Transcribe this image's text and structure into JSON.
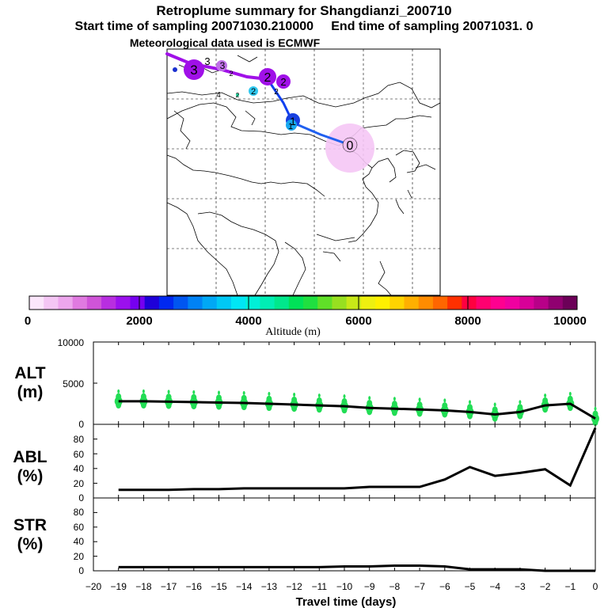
{
  "header": {
    "title": "Retroplume summary for Shangdianzi_200710",
    "subtitle_start": "Start time of sampling 20071030.210000",
    "subtitle_end": "End time of sampling 20071031.     0",
    "met_line": "Meteorological data used is ECMWF"
  },
  "colorbar": {
    "tick_labels": [
      "0",
      "2000",
      "4000",
      "6000",
      "8000",
      "10000"
    ],
    "label": "Altitude (m)",
    "colors": [
      "#fbe6fb",
      "#f4c6f4",
      "#eda6ed",
      "#e07ae0",
      "#d054d8",
      "#b82ee0",
      "#9b10ee",
      "#7600f0",
      "#1e00d8",
      "#0028f0",
      "#0056f0",
      "#0082f5",
      "#00a8f5",
      "#00c8f5",
      "#00e6f5",
      "#00f0d8",
      "#00eeb4",
      "#00e88c",
      "#00e258",
      "#20e040",
      "#60e028",
      "#98e020",
      "#c8e818",
      "#eef010",
      "#fff000",
      "#ffd400",
      "#ffb000",
      "#ff8c00",
      "#ff6600",
      "#ff3000",
      "#ff0040",
      "#ff0070",
      "#ff0090",
      "#f000a0",
      "#d80098",
      "#b80088",
      "#900070",
      "#6c0058"
    ]
  },
  "map": {
    "trajectory_labels": [
      "0",
      "1",
      "1",
      "2",
      "2",
      "2",
      "2",
      "3",
      "3",
      "3",
      "2",
      "2",
      "4"
    ]
  },
  "panels": {
    "alt": {
      "label_top": "ALT",
      "label_bottom": "(m)",
      "ticks": [
        "10000",
        "5000",
        "0"
      ]
    },
    "abl": {
      "label_top": "ABL",
      "label_bottom": "(%)",
      "ticks": [
        "80",
        "60",
        "40",
        "20",
        "0"
      ]
    },
    "str": {
      "label_top": "STR",
      "label_bottom": "(%)",
      "ticks": [
        "80",
        "60",
        "40",
        "20",
        "0"
      ]
    }
  },
  "xaxis": {
    "tick_labels": [
      "−20",
      "−19",
      "−18",
      "−17",
      "−16",
      "−15",
      "−14",
      "−13",
      "−12",
      "−11",
      "−10",
      "−9",
      "−8",
      "−7",
      "−6",
      "−5",
      "−4",
      "−3",
      "−2",
      "−1",
      "0"
    ],
    "label": "Travel time (days)"
  },
  "chart_data": [
    {
      "type": "line",
      "title": "ALT (m)",
      "x": [
        -19,
        -18,
        -17,
        -16,
        -15,
        -14,
        -13,
        -12,
        -11,
        -10,
        -9,
        -8,
        -7,
        -6,
        -5,
        -4,
        -3,
        -2,
        -1,
        0
      ],
      "values": [
        2800,
        2800,
        2750,
        2700,
        2650,
        2600,
        2500,
        2400,
        2300,
        2200,
        2000,
        1900,
        1800,
        1700,
        1500,
        1200,
        1500,
        2300,
        2500,
        700
      ],
      "xlim": [
        -20,
        0
      ],
      "ylim": [
        0,
        10000
      ],
      "ylabel": "ALT (m)",
      "xlabel": "Travel time (days)",
      "scatter_color": "#22dd55"
    },
    {
      "type": "line",
      "title": "ABL (%)",
      "x": [
        -19,
        -18,
        -17,
        -16,
        -15,
        -14,
        -13,
        -12,
        -11,
        -10,
        -9,
        -8,
        -7,
        -6,
        -5,
        -4,
        -3,
        -2,
        -1,
        0
      ],
      "values": [
        11,
        11,
        11,
        12,
        12,
        13,
        13,
        13,
        13,
        13,
        15,
        15,
        15,
        25,
        42,
        30,
        34,
        39,
        17,
        95
      ],
      "xlim": [
        -20,
        0
      ],
      "ylim": [
        0,
        100
      ],
      "ylabel": "ABL (%)"
    },
    {
      "type": "line",
      "title": "STR (%)",
      "x": [
        -19,
        -18,
        -17,
        -16,
        -15,
        -14,
        -13,
        -12,
        -11,
        -10,
        -9,
        -8,
        -7,
        -6,
        -5,
        -4,
        -3,
        -2,
        -1,
        0
      ],
      "values": [
        5,
        5,
        5,
        5,
        5,
        5,
        5,
        5,
        5,
        6,
        6,
        7,
        7,
        6,
        2,
        2,
        2,
        0,
        0,
        0
      ],
      "xlim": [
        -20,
        0
      ],
      "ylim": [
        0,
        100
      ],
      "ylabel": "STR (%)"
    }
  ]
}
